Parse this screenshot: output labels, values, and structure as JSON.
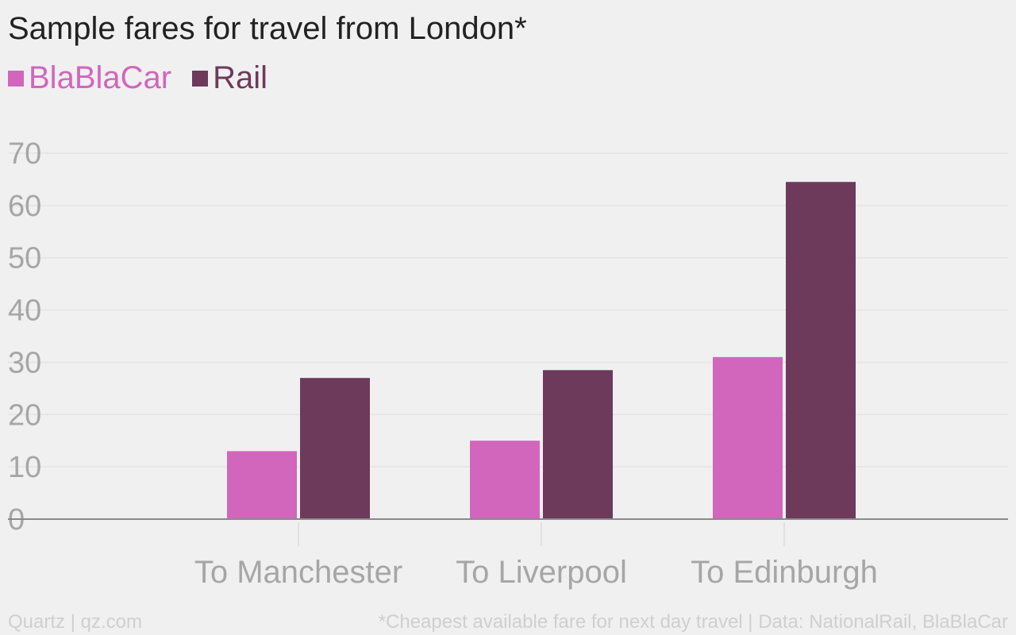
{
  "chart_data": {
    "type": "bar",
    "title": "Sample fares for travel from London*",
    "categories": [
      "To Manchester",
      "To Liverpool",
      "To Edinburgh"
    ],
    "series": [
      {
        "name": "BlaBlaCar",
        "color": "#d166bc",
        "values": [
          13,
          15,
          31
        ]
      },
      {
        "name": "Rail",
        "color": "#6d3a5b",
        "values": [
          27,
          28.5,
          64.5
        ]
      }
    ],
    "yticks": [
      "0",
      "10",
      "20",
      "30",
      "40",
      "50",
      "60",
      "70"
    ],
    "ylim": [
      0,
      70
    ],
    "grid": true,
    "legend_position": "top-left"
  },
  "footer": {
    "source": "Quartz | qz.com",
    "note": "*Cheapest available fare for next day travel | Data: NationalRail, BlaBlaCar"
  }
}
